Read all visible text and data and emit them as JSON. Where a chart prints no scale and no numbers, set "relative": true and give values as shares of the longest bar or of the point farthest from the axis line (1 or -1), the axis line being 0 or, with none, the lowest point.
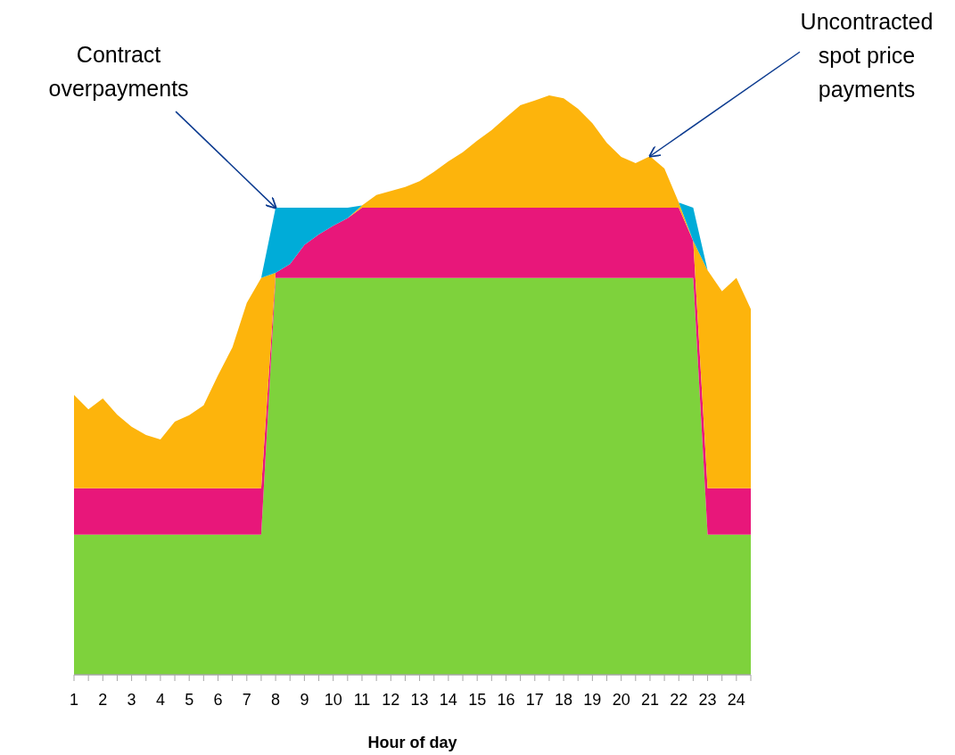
{
  "chart_data": {
    "type": "area",
    "relative": true,
    "stacked": true,
    "xlabel": "Hour of day",
    "x": [
      1,
      1.5,
      2,
      2.5,
      3,
      3.5,
      4,
      4.5,
      5,
      5.5,
      6,
      6.5,
      7,
      7.5,
      8,
      8.5,
      9,
      9.5,
      10,
      10.5,
      11,
      11.5,
      12,
      12.5,
      13,
      13.5,
      14,
      14.5,
      15,
      15.5,
      16,
      16.5,
      17,
      17.5,
      18,
      18.5,
      19,
      19.5,
      20,
      20.5,
      21,
      21.5,
      22,
      22.5,
      23,
      23.5,
      24,
      24.5
    ],
    "xlim": [
      1,
      24.5
    ],
    "xticks": [
      1,
      {
        "value": 1.5,
        "label": null
      },
      2,
      {
        "value": 2.5,
        "label": null
      },
      3,
      {
        "value": 3.5,
        "label": null
      },
      4,
      {
        "value": 4.5,
        "label": null
      },
      5,
      {
        "value": 5.5,
        "label": null
      },
      6,
      {
        "value": 6.5,
        "label": null
      },
      7,
      {
        "value": 7.5,
        "label": null
      },
      8,
      {
        "value": 8.5,
        "label": null
      },
      9,
      {
        "value": 9.5,
        "label": null
      },
      10,
      {
        "value": 10.5,
        "label": null
      },
      11,
      {
        "value": 11.5,
        "label": null
      },
      12,
      {
        "value": 12.5,
        "label": null
      },
      13,
      {
        "value": 13.5,
        "label": null
      },
      14,
      {
        "value": 14.5,
        "label": null
      },
      15,
      {
        "value": 15.5,
        "label": null
      },
      16,
      {
        "value": 16.5,
        "label": null
      },
      17,
      {
        "value": 17.5,
        "label": null
      },
      18,
      {
        "value": 18.5,
        "label": null
      },
      19,
      {
        "value": 19.5,
        "label": null
      },
      20,
      {
        "value": 20.5,
        "label": null
      },
      21,
      {
        "value": 21.5,
        "label": null
      },
      22,
      {
        "value": 22.5,
        "label": null
      },
      23,
      {
        "value": 23.5,
        "label": null
      },
      24,
      {
        "value": 24.5,
        "label": null
      }
    ],
    "series": [
      {
        "color": "#7ed23c",
        "values": [
          0.242,
          0.242,
          0.242,
          0.242,
          0.242,
          0.242,
          0.242,
          0.242,
          0.242,
          0.242,
          0.242,
          0.242,
          0.242,
          0.242,
          0.685,
          0.685,
          0.685,
          0.685,
          0.685,
          0.685,
          0.685,
          0.685,
          0.685,
          0.685,
          0.685,
          0.685,
          0.685,
          0.685,
          0.685,
          0.685,
          0.685,
          0.685,
          0.685,
          0.685,
          0.685,
          0.685,
          0.685,
          0.685,
          0.685,
          0.685,
          0.685,
          0.685,
          0.685,
          0.685,
          0.242,
          0.242,
          0.242,
          0.242
        ]
      },
      {
        "color": "#e8177a",
        "values": [
          0.08,
          0.08,
          0.08,
          0.08,
          0.08,
          0.08,
          0.08,
          0.08,
          0.08,
          0.08,
          0.08,
          0.08,
          0.08,
          0.08,
          0.009,
          0.024,
          0.057,
          0.075,
          0.09,
          0.103,
          0.121,
          0.121,
          0.121,
          0.121,
          0.121,
          0.121,
          0.121,
          0.121,
          0.121,
          0.121,
          0.121,
          0.121,
          0.121,
          0.121,
          0.121,
          0.121,
          0.121,
          0.121,
          0.121,
          0.121,
          0.121,
          0.121,
          0.121,
          0.064,
          0.08,
          0.08,
          0.08,
          0.08
        ]
      },
      {
        "color": "#fdb40c",
        "values": [
          0.161,
          0.136,
          0.155,
          0.127,
          0.106,
          0.092,
          0.084,
          0.115,
          0.126,
          0.143,
          0.195,
          0.243,
          0.32,
          0.363,
          0,
          0,
          0,
          0,
          0,
          0,
          0.004,
          0.022,
          0.029,
          0.036,
          0.046,
          0.062,
          0.08,
          0.096,
          0.116,
          0.134,
          0.156,
          0.177,
          0.185,
          0.194,
          0.189,
          0.171,
          0.146,
          0.112,
          0.088,
          0.077,
          0.089,
          0.068,
          0.009,
          0,
          0.376,
          0.34,
          0.363,
          0.309
        ]
      },
      {
        "color": "#00acd8",
        "values": [
          0,
          0,
          0,
          0,
          0,
          0,
          0,
          0,
          0,
          0,
          0,
          0,
          0,
          0,
          0.112,
          0.097,
          0.064,
          0.046,
          0.031,
          0.018,
          0,
          0,
          0,
          0,
          0,
          0,
          0,
          0,
          0,
          0,
          0,
          0,
          0,
          0,
          0,
          0,
          0,
          0,
          0,
          0,
          0,
          0,
          0,
          0.057,
          0,
          0,
          0,
          0
        ]
      }
    ],
    "annotations": [
      {
        "text": "Contract\noverpayments",
        "x": 8,
        "y": 0.806
      },
      {
        "text": "Uncontracted\nspot price\npayments",
        "x": 21,
        "y": 0.895
      }
    ]
  }
}
